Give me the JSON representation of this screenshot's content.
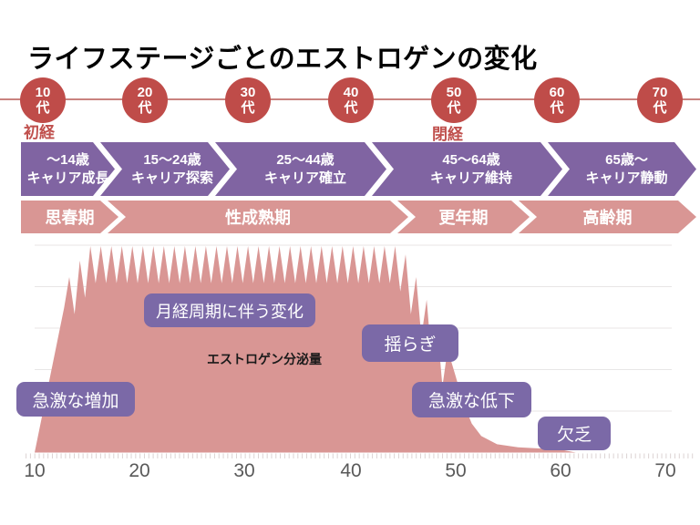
{
  "title": "ライフステージごとのエストロゲンの変化",
  "colors": {
    "dark_red": "#bf4c49",
    "red_text": "#c0504d",
    "career_purple": "#8064a2",
    "life_pink": "#d99694",
    "annotation_purple": "#7b69a7",
    "axis_gray": "#595959"
  },
  "timeline": {
    "decade_numbers": [
      "10",
      "20",
      "30",
      "40",
      "50",
      "60",
      "70"
    ],
    "decade_suffix": "代",
    "menarche_label": "初経",
    "menopause_label": "閉経"
  },
  "career_stages": [
    {
      "age": "〜14歳",
      "stage": "キャリア成長"
    },
    {
      "age": "15〜24歳",
      "stage": "キャリア探索"
    },
    {
      "age": "25〜44歳",
      "stage": "キャリア確立"
    },
    {
      "age": "45〜64歳",
      "stage": "キャリア維持"
    },
    {
      "age": "65歳〜",
      "stage": "キャリア静動"
    }
  ],
  "life_stages": [
    "思春期",
    "性成熟期",
    "更年期",
    "高齢期"
  ],
  "chart_data": {
    "type": "area",
    "series_label": "エストロゲン分泌量",
    "x_tick_labels": [
      "10",
      "20",
      "30",
      "40",
      "50",
      "60",
      "70"
    ],
    "x_range_years": [
      10,
      70
    ],
    "grid": true,
    "area_color": "#d99694",
    "upper_envelope": [
      [
        10,
        0
      ],
      [
        12.8,
        70
      ],
      [
        13.3,
        85
      ],
      [
        14.3,
        93
      ],
      [
        15.3,
        100
      ],
      [
        44.8,
        100
      ],
      [
        45.3,
        96
      ],
      [
        46.3,
        85
      ],
      [
        47.3,
        74
      ],
      [
        48.3,
        62
      ],
      [
        49.3,
        50
      ],
      [
        50,
        38
      ],
      [
        50.8,
        24
      ],
      [
        51.6,
        14
      ],
      [
        52.5,
        8
      ],
      [
        54,
        4
      ],
      [
        56,
        2.5
      ],
      [
        58,
        2
      ],
      [
        60,
        1.5
      ],
      [
        61.5,
        0
      ]
    ],
    "spike_region": [
      13.3,
      49.3
    ],
    "spike_period_years": 1,
    "spike_depth": 18,
    "annotations": [
      "急激な増加",
      "月経周期に伴う変化",
      "揺らぎ",
      "急激な低下",
      "欠乏"
    ]
  }
}
